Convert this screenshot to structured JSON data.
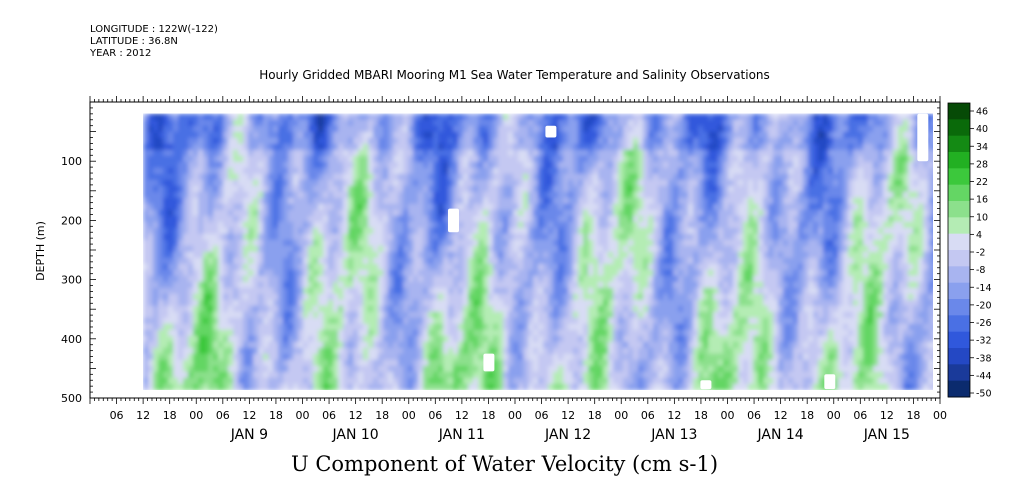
{
  "header": {
    "longitude": "LONGITUDE : 122W(-122)",
    "latitude": "LATITUDE : 36.8N",
    "year": "YEAR : 2012",
    "title": "Hourly Gridded MBARI Mooring M1 Sea Water Temperature and Salinity Observations"
  },
  "chart_data": {
    "type": "heatmap",
    "title": "Hourly Gridded MBARI Mooring M1 Sea Water Temperature and Salinity Observations",
    "xlabel": "U Component of Water Velocity (cm s-1)",
    "ylabel": "DEPTH (m)",
    "x_range_hours": [
      "2012-01-08 00:00",
      "2012-01-16 00:00"
    ],
    "data_extent": [
      "2012-01-08 12:00",
      "2012-01-16 00:00"
    ],
    "ylim": [
      500,
      0
    ],
    "depth_extent": [
      20,
      485
    ],
    "y_ticks": [
      100,
      200,
      300,
      400,
      500
    ],
    "x_hour_ticks": [
      "06",
      "12",
      "18",
      "00",
      "06",
      "12",
      "18",
      "00",
      "06",
      "12",
      "18",
      "00",
      "06",
      "12",
      "18",
      "00",
      "06",
      "12",
      "18",
      "00",
      "06",
      "12",
      "18",
      "00",
      "06",
      "12",
      "18",
      "00",
      "06",
      "12",
      "18",
      "00"
    ],
    "day_labels": [
      "JAN  9",
      "JAN 10",
      "JAN 11",
      "JAN 12",
      "JAN 13",
      "JAN 14",
      "JAN 15"
    ],
    "colorbar": {
      "levels": [
        46,
        40,
        34,
        28,
        22,
        16,
        10,
        4,
        -2,
        -8,
        -14,
        -20,
        -26,
        -32,
        -38,
        -44,
        -50
      ],
      "min": -50,
      "max": 48,
      "colors": [
        "#0b2b6e",
        "#1a3a9a",
        "#2448c4",
        "#3058dc",
        "#4a70e4",
        "#6a88ea",
        "#8aa0ee",
        "#a8b4f0",
        "#c4c8f2",
        "#d8dcf4",
        "#b4ecb4",
        "#8ce08c",
        "#64d664",
        "#3cc83c",
        "#22b022",
        "#148a14",
        "#0a6a0a",
        "#064a06"
      ]
    },
    "missing_blocks": [
      {
        "time": "2012-01-11 10:00",
        "depth": [
          180,
          220
        ]
      },
      {
        "time": "2012-01-11 18:00",
        "depth": [
          425,
          455
        ]
      },
      {
        "time": "2012-01-12 08:00",
        "depth": [
          40,
          60
        ]
      },
      {
        "time": "2012-01-13 19:00",
        "depth": [
          470,
          485
        ]
      },
      {
        "time": "2012-01-14 23:00",
        "depth": [
          460,
          485
        ]
      },
      {
        "time": "2012-01-15 20:00",
        "depth": [
          20,
          100
        ]
      }
    ]
  },
  "footer": {
    "axis_title": "U Component of Water Velocity (cm s-1)"
  }
}
